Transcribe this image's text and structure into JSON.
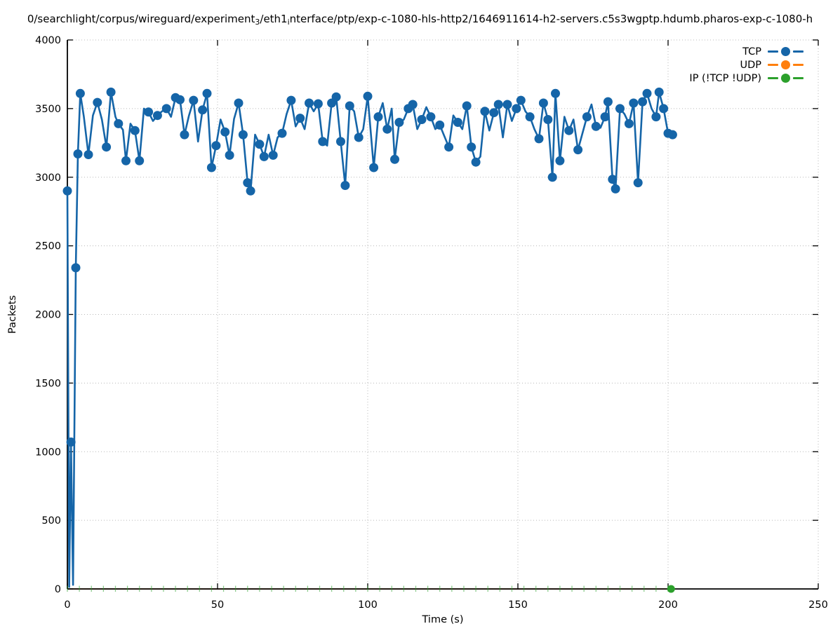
{
  "title": {
    "display": "0/searchlight/corpus/wireguard/experiment₃/eth1ᵢnterface/ptp/exp-c-1080-hls-http2/1646911614-h2-servers.c5s3wgptp.hdumb.pharos-exp-c-1080-h",
    "parts": [
      {
        "text": "0/searchlight/corpus/wireguard/experiment"
      },
      {
        "sub": "3"
      },
      {
        "text": "/eth1"
      },
      {
        "sub": "i"
      },
      {
        "text": "nterface/ptp/exp-c-1080-hls-http2/1646911614-h2-servers.c5s3wgptp.hdumb.pharos-exp-c-1080-h"
      }
    ]
  },
  "legend": {
    "items": [
      {
        "label": "TCP",
        "color": "#1565a8"
      },
      {
        "label": "UDP",
        "color": "#ff7f0e"
      },
      {
        "label": "IP (!TCP  !UDP)",
        "color": "#2ca02c"
      }
    ]
  },
  "chart_data": {
    "type": "line",
    "title": "0/searchlight/corpus/wireguard/experiment₃/eth1ᵢnterface/ptp/exp-c-1080-hls-http2/1646911614-h2-servers.c5s3wgptp.hdumb.pharos-exp-c-1080-h",
    "xlabel": "Time (s)",
    "ylabel": "Packets",
    "xlim": [
      0,
      250
    ],
    "ylim": [
      0,
      4000
    ],
    "x_ticks": [
      0,
      50,
      100,
      150,
      200,
      250
    ],
    "y_ticks": [
      0,
      500,
      1000,
      1500,
      2000,
      2500,
      3000,
      3500,
      4000
    ],
    "grid": true,
    "grid_color": "#b8b8b8",
    "legend_position": "top-right",
    "series": [
      {
        "name": "TCP",
        "color": "#1565a8",
        "style": "linespoints",
        "points": [
          [
            0,
            2900,
            1
          ],
          [
            0.6,
            15,
            0
          ],
          [
            1.2,
            1070,
            1
          ],
          [
            1.9,
            30,
            0
          ],
          [
            2.8,
            2340,
            1
          ],
          [
            3.5,
            3170,
            1
          ],
          [
            4.3,
            3610,
            1
          ],
          [
            5.5,
            3440,
            0
          ],
          [
            7,
            3165,
            1
          ],
          [
            8.5,
            3450,
            0
          ],
          [
            10,
            3545,
            1
          ],
          [
            11.5,
            3420,
            0
          ],
          [
            13,
            3220,
            1
          ],
          [
            14.5,
            3620,
            1
          ],
          [
            16,
            3440,
            0
          ],
          [
            17,
            3390,
            1
          ],
          [
            18.5,
            3345,
            0
          ],
          [
            19.5,
            3120,
            1
          ],
          [
            21,
            3390,
            0
          ],
          [
            22.5,
            3340,
            1
          ],
          [
            24,
            3120,
            1
          ],
          [
            25.5,
            3500,
            0
          ],
          [
            27,
            3475,
            1
          ],
          [
            28.5,
            3410,
            0
          ],
          [
            30,
            3450,
            1
          ],
          [
            31.5,
            3480,
            0
          ],
          [
            33,
            3500,
            1
          ],
          [
            34.5,
            3440,
            0
          ],
          [
            36,
            3580,
            1
          ],
          [
            37.5,
            3565,
            1
          ],
          [
            39,
            3310,
            1
          ],
          [
            40.5,
            3450,
            0
          ],
          [
            42,
            3560,
            1
          ],
          [
            43.5,
            3260,
            0
          ],
          [
            45,
            3490,
            1
          ],
          [
            46.5,
            3610,
            1
          ],
          [
            48,
            3070,
            1
          ],
          [
            49.5,
            3230,
            1
          ],
          [
            51,
            3420,
            0
          ],
          [
            52.5,
            3330,
            1
          ],
          [
            54,
            3160,
            1
          ],
          [
            55.5,
            3425,
            0
          ],
          [
            57,
            3540,
            1
          ],
          [
            58.5,
            3310,
            1
          ],
          [
            60,
            2960,
            1
          ],
          [
            61,
            2900,
            1
          ],
          [
            62.5,
            3310,
            0
          ],
          [
            64,
            3240,
            1
          ],
          [
            65.5,
            3150,
            1
          ],
          [
            67,
            3310,
            0
          ],
          [
            68.5,
            3160,
            1
          ],
          [
            70,
            3290,
            0
          ],
          [
            71.5,
            3320,
            1
          ],
          [
            73,
            3460,
            0
          ],
          [
            74.5,
            3560,
            1
          ],
          [
            76,
            3370,
            0
          ],
          [
            77.5,
            3430,
            1
          ],
          [
            79,
            3350,
            0
          ],
          [
            80.5,
            3540,
            1
          ],
          [
            82,
            3480,
            0
          ],
          [
            83.5,
            3535,
            1
          ],
          [
            85,
            3260,
            1
          ],
          [
            86.5,
            3230,
            0
          ],
          [
            88,
            3540,
            1
          ],
          [
            89.5,
            3585,
            1
          ],
          [
            91,
            3260,
            1
          ],
          [
            92.5,
            2940,
            1
          ],
          [
            94,
            3520,
            1
          ],
          [
            95.5,
            3480,
            0
          ],
          [
            97,
            3290,
            1
          ],
          [
            98.5,
            3350,
            0
          ],
          [
            100,
            3590,
            1
          ],
          [
            102,
            3070,
            1
          ],
          [
            103.5,
            3440,
            1
          ],
          [
            105,
            3540,
            0
          ],
          [
            106.5,
            3350,
            1
          ],
          [
            108,
            3500,
            0
          ],
          [
            109,
            3130,
            1
          ],
          [
            110.5,
            3400,
            1
          ],
          [
            112,
            3420,
            0
          ],
          [
            113.5,
            3500,
            1
          ],
          [
            115,
            3530,
            1
          ],
          [
            116.5,
            3350,
            0
          ],
          [
            118,
            3420,
            1
          ],
          [
            119.5,
            3510,
            0
          ],
          [
            121,
            3440,
            1
          ],
          [
            122.5,
            3350,
            0
          ],
          [
            124,
            3380,
            1
          ],
          [
            125.5,
            3300,
            0
          ],
          [
            127,
            3220,
            1
          ],
          [
            128.5,
            3450,
            0
          ],
          [
            130,
            3400,
            1
          ],
          [
            131.5,
            3350,
            0
          ],
          [
            133,
            3520,
            1
          ],
          [
            134.5,
            3220,
            1
          ],
          [
            136,
            3110,
            1
          ],
          [
            137.5,
            3150,
            0
          ],
          [
            139,
            3480,
            1
          ],
          [
            140.5,
            3340,
            0
          ],
          [
            142,
            3470,
            1
          ],
          [
            143.5,
            3530,
            1
          ],
          [
            145,
            3290,
            0
          ],
          [
            146.5,
            3530,
            1
          ],
          [
            148,
            3410,
            0
          ],
          [
            149.5,
            3500,
            1
          ],
          [
            151,
            3560,
            1
          ],
          [
            152.5,
            3480,
            0
          ],
          [
            154,
            3440,
            1
          ],
          [
            155.5,
            3350,
            0
          ],
          [
            157,
            3280,
            1
          ],
          [
            158.5,
            3540,
            1
          ],
          [
            160,
            3420,
            1
          ],
          [
            161.5,
            3000,
            1
          ],
          [
            162.5,
            3610,
            1
          ],
          [
            164,
            3120,
            1
          ],
          [
            165.5,
            3440,
            0
          ],
          [
            167,
            3340,
            1
          ],
          [
            168.5,
            3420,
            0
          ],
          [
            170,
            3200,
            1
          ],
          [
            171.5,
            3320,
            0
          ],
          [
            173,
            3440,
            1
          ],
          [
            174.5,
            3530,
            0
          ],
          [
            176,
            3370,
            1
          ],
          [
            177.5,
            3360,
            0
          ],
          [
            179,
            3440,
            1
          ],
          [
            180,
            3550,
            1
          ],
          [
            181.5,
            2985,
            1
          ],
          [
            182.5,
            2915,
            1
          ],
          [
            184,
            3500,
            1
          ],
          [
            185.5,
            3460,
            0
          ],
          [
            187,
            3390,
            1
          ],
          [
            188.5,
            3540,
            1
          ],
          [
            190,
            2960,
            1
          ],
          [
            191.5,
            3550,
            1
          ],
          [
            193,
            3610,
            1
          ],
          [
            194.5,
            3500,
            0
          ],
          [
            196,
            3440,
            1
          ],
          [
            197,
            3620,
            1
          ],
          [
            198.5,
            3500,
            1
          ],
          [
            200,
            3320,
            1
          ],
          [
            201.5,
            3310,
            1
          ]
        ]
      },
      {
        "name": "UDP",
        "color": "#ff7f0e",
        "style": "linespoints",
        "points": [
          [
            0,
            0,
            0
          ],
          [
            201,
            0,
            0
          ]
        ]
      },
      {
        "name": "IP (!TCP  !UDP)",
        "color": "#2ca02c",
        "style": "linespoints",
        "value": 0,
        "tick_times": [
          0,
          4,
          8,
          12,
          16,
          20,
          24,
          28,
          32,
          36,
          40,
          44,
          48,
          52,
          56,
          60,
          64,
          68,
          72,
          76,
          80,
          84,
          88,
          92,
          96,
          100,
          104,
          108,
          112,
          116,
          120,
          124,
          128,
          132,
          136,
          140,
          144,
          148,
          152,
          156,
          160,
          164,
          168,
          172,
          176,
          180,
          184,
          188,
          192,
          196,
          200
        ],
        "end_marker": [
          201,
          0
        ]
      }
    ]
  }
}
